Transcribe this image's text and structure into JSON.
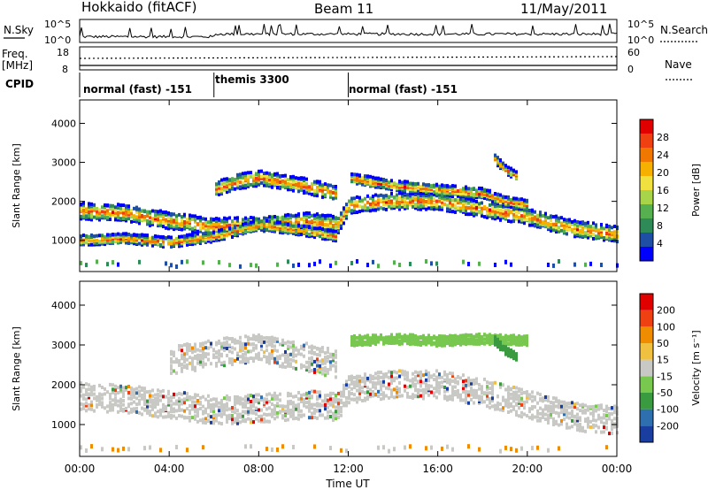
{
  "header": {
    "title": "Hokkaido (fitACF)",
    "beam": "Beam 11",
    "date": "11/May/2011"
  },
  "top_panel": {
    "left_label_1": "N.Sky",
    "left_ticks": [
      "10^5",
      "10^0"
    ],
    "right_ticks": [
      "10^5",
      "10^0"
    ],
    "right_label_1": "N.Search",
    "freq_label": "Freq.",
    "freq_unit": "[MHz]",
    "freq_ticks": [
      "18",
      "8"
    ],
    "nave_ticks": [
      "60",
      "0"
    ],
    "nave_label": "Nave",
    "cpid_label": "CPID"
  },
  "cpid_modes": [
    {
      "label": "normal (fast) -151",
      "start_hour": 0,
      "end_hour": 6
    },
    {
      "label": "themis 3300",
      "start_hour": 6,
      "end_hour": 12
    },
    {
      "label": "normal (fast) -151",
      "start_hour": 12,
      "end_hour": 24
    }
  ],
  "chart_data": [
    {
      "type": "heatmap",
      "quantity": "Power",
      "xlabel": "",
      "ylabel": "Slant Range [km]",
      "xlim": [
        0,
        24
      ],
      "ylim": [
        200,
        4600
      ],
      "yticks": [
        "1000",
        "2000",
        "3000",
        "4000"
      ],
      "colorbar_label": "Power [dB]",
      "colorbar_ticks": [
        "28",
        "24",
        "20",
        "16",
        "12",
        "8",
        "4"
      ],
      "colorbar_colors": [
        "#0000ff",
        "#1e4fa5",
        "#2e8b57",
        "#56b050",
        "#a8d44a",
        "#f0e040",
        "#f5b000",
        "#f07800",
        "#ee4010",
        "#e00000"
      ],
      "bands": [
        {
          "hours": [
            0,
            2,
            4,
            6,
            8,
            10,
            11.5,
            12,
            14,
            16,
            18,
            20,
            22,
            24
          ],
          "range": [
            1750,
            1700,
            1500,
            1350,
            1400,
            1500,
            1400,
            1900,
            2000,
            2000,
            1800,
            1600,
            1300,
            1150
          ],
          "width": 420
        },
        {
          "hours": [
            0,
            2,
            4,
            6,
            8,
            10,
            11.5
          ],
          "range": [
            1000,
            1050,
            950,
            1100,
            1400,
            1250,
            1100
          ],
          "width": 260
        },
        {
          "hours": [
            6,
            7,
            8,
            9,
            10,
            11.5
          ],
          "range": [
            2300,
            2500,
            2600,
            2500,
            2400,
            2200
          ],
          "width": 380
        },
        {
          "hours": [
            12,
            14,
            16,
            18,
            19,
            20
          ],
          "range": [
            2600,
            2400,
            2300,
            2200,
            2000,
            1900
          ],
          "width": 260
        },
        {
          "hours": [
            18.5,
            19,
            19.5
          ],
          "range": [
            3100,
            2800,
            2650
          ],
          "width": 220
        }
      ]
    },
    {
      "type": "heatmap",
      "quantity": "Velocity",
      "xlabel": "Time UT",
      "ylabel": "Slant Range [km]",
      "xlim": [
        0,
        24
      ],
      "ylim": [
        200,
        4600
      ],
      "xticks": [
        "00:00",
        "04:00",
        "08:00",
        "12:00",
        "16:00",
        "20:00",
        "00:00"
      ],
      "yticks": [
        "1000",
        "2000",
        "3000",
        "4000"
      ],
      "colorbar_label": "Velocity [m s⁻¹]",
      "colorbar_ticks": [
        "200",
        "100",
        "50",
        "15",
        "-15",
        "-50",
        "-100",
        "-200"
      ],
      "colorbar_colors": [
        "#1a3ea0",
        "#2e6fb0",
        "#3a9a40",
        "#78c850",
        "#c8c8c4",
        "#f0c040",
        "#f08c00",
        "#ee4010",
        "#e00000"
      ],
      "bands": [
        {
          "hours": [
            0,
            2,
            4,
            6,
            8,
            10,
            11.5,
            12,
            14,
            16,
            18,
            20,
            22,
            24
          ],
          "range": [
            1700,
            1650,
            1500,
            1350,
            1400,
            1500,
            1450,
            1900,
            2000,
            2000,
            1800,
            1500,
            1200,
            1100
          ],
          "width": 700
        },
        {
          "hours": [
            4,
            6,
            8,
            10,
            11.5
          ],
          "range": [
            2600,
            2800,
            2900,
            2700,
            2500
          ],
          "width": 700
        },
        {
          "hours": [
            12,
            14,
            16,
            18,
            20
          ],
          "range": [
            3100,
            3150,
            3100,
            3150,
            3100
          ],
          "width": 250,
          "color_index": 3
        },
        {
          "hours": [
            18.5,
            19,
            19.5
          ],
          "range": [
            3100,
            2850,
            2700
          ],
          "width": 200,
          "color_index": 2
        }
      ]
    }
  ]
}
